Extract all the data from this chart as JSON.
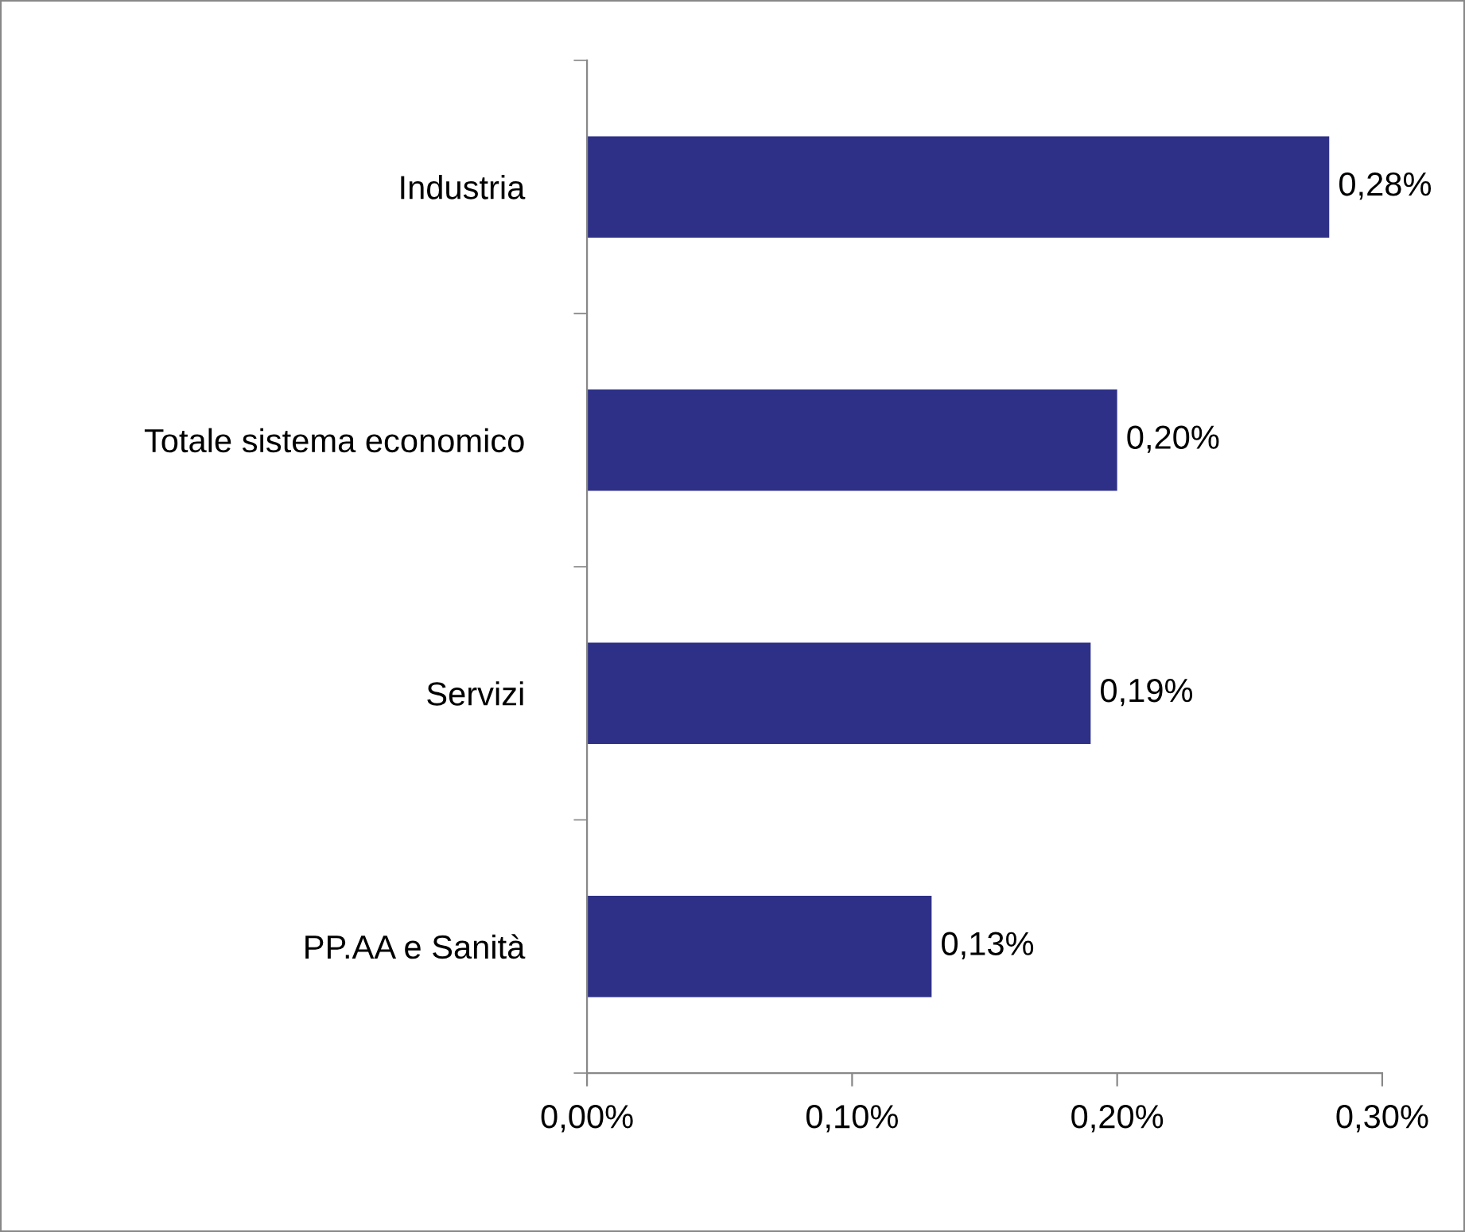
{
  "chart_data": {
    "type": "bar",
    "orientation": "horizontal",
    "categories": [
      "Industria",
      "Totale sistema economico",
      "Servizi",
      "PP.AA e Sanità"
    ],
    "values": [
      0.28,
      0.2,
      0.19,
      0.13
    ],
    "color": "#2e3087",
    "value_labels": [
      "0,28%",
      "0,20%",
      "0,19%",
      "0,13%"
    ],
    "xlim": [
      0,
      0.3
    ],
    "xticks": [
      {
        "value": 0,
        "label": "0,00%"
      },
      {
        "value": 0.1,
        "label": "0,10%"
      },
      {
        "value": 0.2,
        "label": "0,20%"
      },
      {
        "value": 0.3,
        "label": "0,30%"
      }
    ],
    "grid": false,
    "legend": false
  }
}
